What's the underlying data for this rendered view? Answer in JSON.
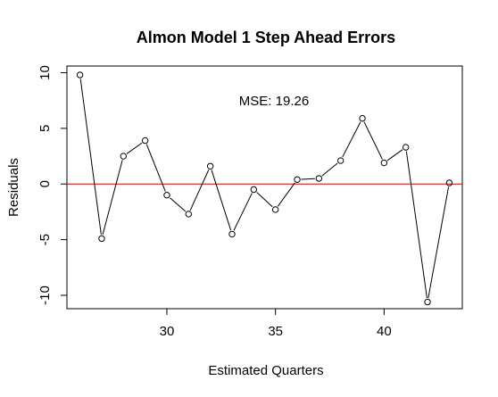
{
  "chart_data": {
    "type": "line",
    "title": "Almon Model 1 Step Ahead Errors",
    "xlabel": "Estimated Quarters",
    "ylabel": "Residuals",
    "annotation": "MSE: 19.26",
    "xlim": [
      25.4,
      43.6
    ],
    "ylim": [
      -11.2,
      10.6
    ],
    "x_ticks": [
      30,
      35,
      40
    ],
    "y_ticks": [
      -10,
      -5,
      0,
      5,
      10
    ],
    "reference_line": {
      "y": 0,
      "color": "#cc0000"
    },
    "line_color": "#000000",
    "grid": false,
    "x": [
      26,
      27,
      28,
      29,
      30,
      31,
      32,
      33,
      34,
      35,
      36,
      37,
      38,
      39,
      40,
      41,
      42,
      43
    ],
    "values": [
      9.8,
      -4.9,
      2.5,
      3.9,
      -1.0,
      -2.7,
      1.6,
      -4.5,
      -0.5,
      -2.3,
      0.4,
      0.5,
      2.1,
      5.9,
      1.9,
      3.3,
      -10.6,
      0.1
    ]
  }
}
